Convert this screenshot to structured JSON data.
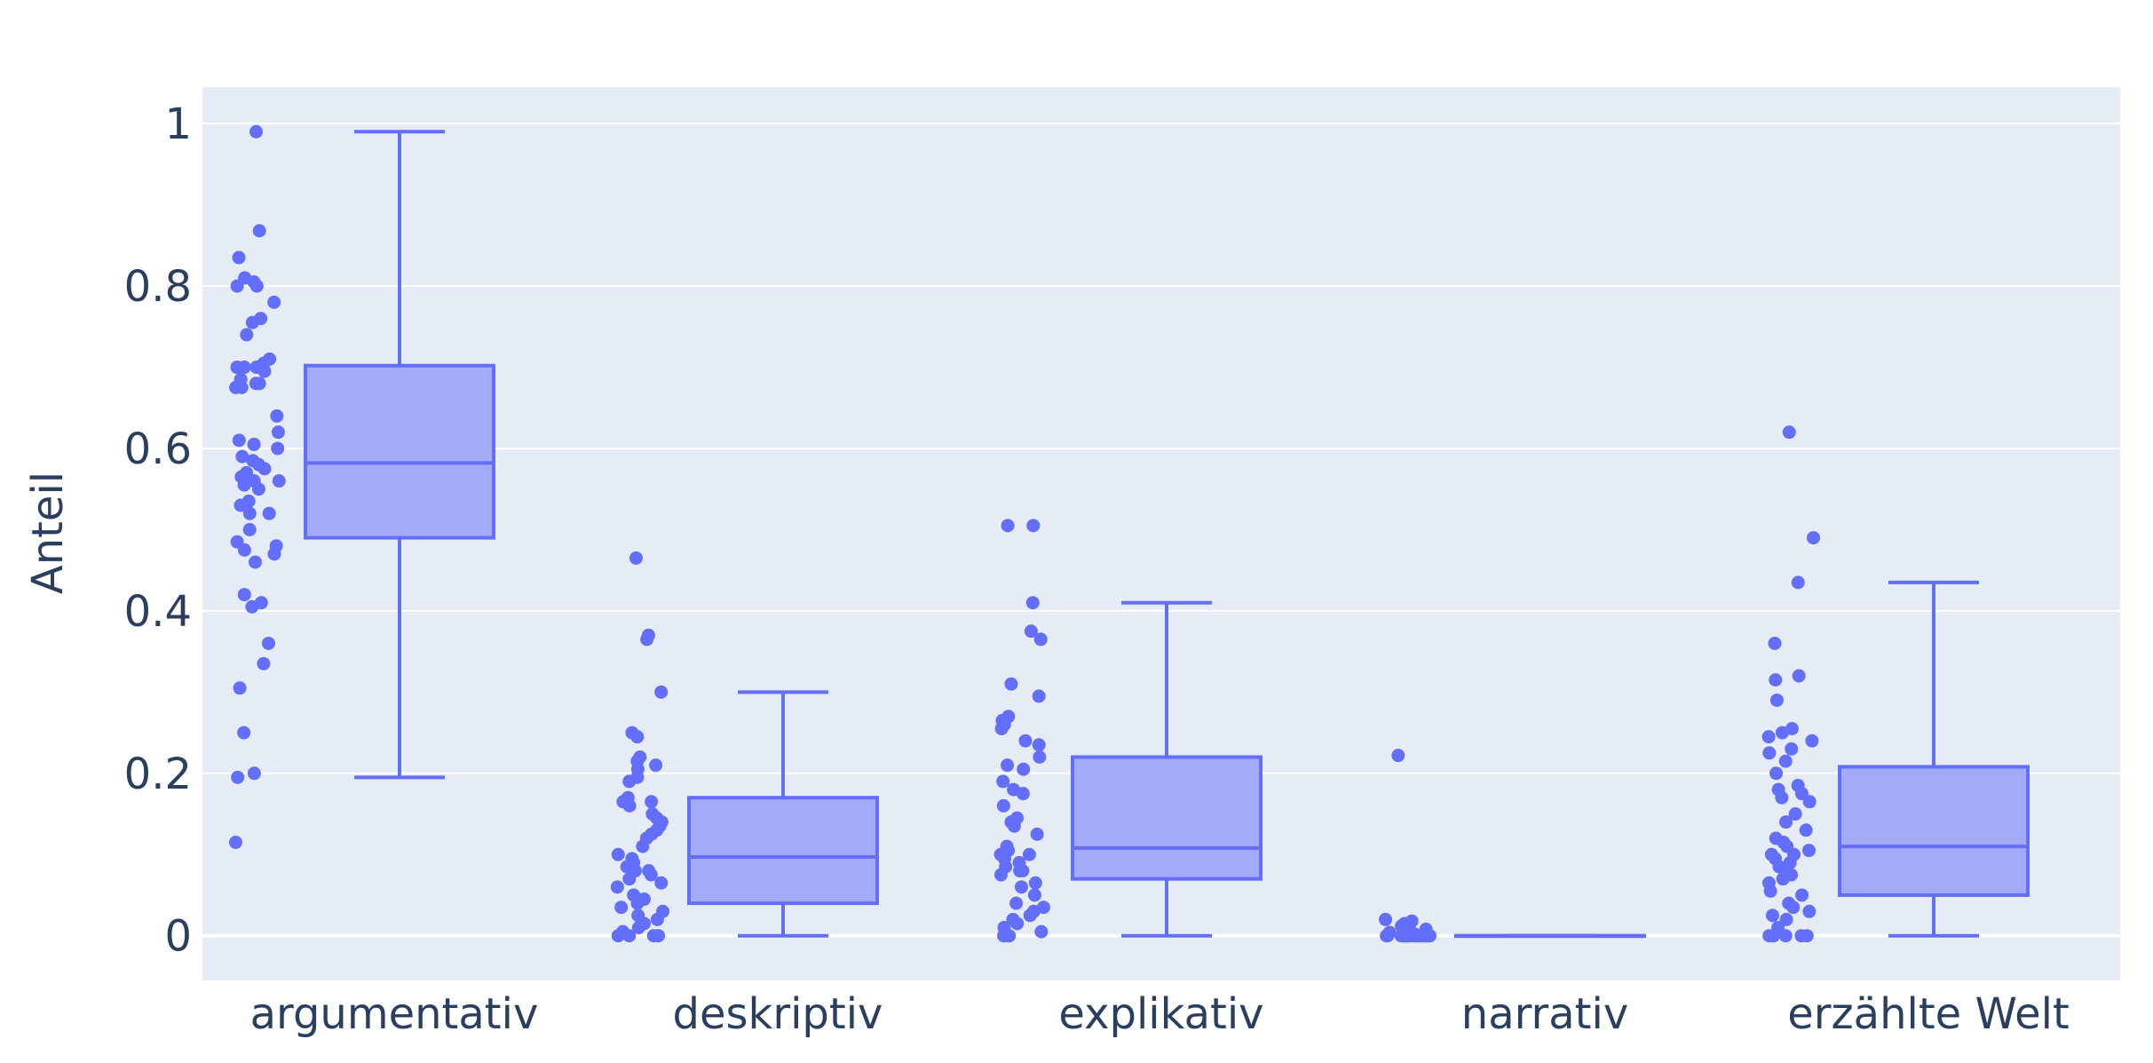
{
  "chart_data": {
    "type": "box",
    "ylabel": "Anteil",
    "xlabel": "",
    "ylim": [
      -0.055,
      1.045
    ],
    "yticks": [
      0,
      0.2,
      0.4,
      0.6,
      0.8,
      1
    ],
    "ytick_labels": [
      "0",
      "0.2",
      "0.4",
      "0.6",
      "0.8",
      "1"
    ],
    "grid": true,
    "legend": "none",
    "colors": {
      "plot_bg": "#e5ecf6",
      "grid": "#ffffff",
      "box_line": "#636efa",
      "box_fill": "#a3aaf7",
      "point": "#636efa",
      "text": "#2a3f5f"
    },
    "categories": [
      "argumentativ",
      "deskriptiv",
      "explikativ",
      "narrativ",
      "erzählte Welt"
    ],
    "boxes": [
      {
        "category": "argumentativ",
        "min": 0.195,
        "q1": 0.49,
        "median": 0.582,
        "q3": 0.702,
        "max": 0.99,
        "points": [
          0.99,
          0.868,
          0.835,
          0.81,
          0.805,
          0.8,
          0.8,
          0.78,
          0.76,
          0.755,
          0.74,
          0.71,
          0.705,
          0.7,
          0.7,
          0.7,
          0.695,
          0.685,
          0.68,
          0.68,
          0.675,
          0.675,
          0.64,
          0.62,
          0.61,
          0.605,
          0.6,
          0.59,
          0.585,
          0.58,
          0.575,
          0.57,
          0.565,
          0.56,
          0.56,
          0.555,
          0.55,
          0.535,
          0.53,
          0.52,
          0.52,
          0.5,
          0.485,
          0.48,
          0.475,
          0.47,
          0.46,
          0.42,
          0.41,
          0.405,
          0.36,
          0.335,
          0.305,
          0.25,
          0.2,
          0.195,
          0.115
        ]
      },
      {
        "category": "deskriptiv",
        "min": 0,
        "q1": 0.04,
        "median": 0.097,
        "q3": 0.17,
        "max": 0.3,
        "points": [
          0.465,
          0.37,
          0.365,
          0.3,
          0.25,
          0.245,
          0.22,
          0.215,
          0.21,
          0.205,
          0.195,
          0.19,
          0.17,
          0.165,
          0.165,
          0.16,
          0.15,
          0.145,
          0.14,
          0.135,
          0.13,
          0.125,
          0.12,
          0.11,
          0.1,
          0.095,
          0.09,
          0.085,
          0.08,
          0.08,
          0.075,
          0.07,
          0.065,
          0.06,
          0.05,
          0.045,
          0.04,
          0.035,
          0.03,
          0.025,
          0.02,
          0.015,
          0.01,
          0.005,
          0,
          0,
          0,
          0
        ]
      },
      {
        "category": "explikativ",
        "min": 0,
        "q1": 0.07,
        "median": 0.108,
        "q3": 0.22,
        "max": 0.41,
        "points": [
          0.505,
          0.505,
          0.41,
          0.375,
          0.365,
          0.31,
          0.295,
          0.27,
          0.265,
          0.26,
          0.255,
          0.24,
          0.235,
          0.22,
          0.21,
          0.205,
          0.19,
          0.18,
          0.175,
          0.16,
          0.145,
          0.14,
          0.135,
          0.125,
          0.11,
          0.105,
          0.1,
          0.1,
          0.095,
          0.09,
          0.085,
          0.08,
          0.08,
          0.075,
          0.065,
          0.06,
          0.05,
          0.04,
          0.035,
          0.03,
          0.025,
          0.02,
          0.015,
          0.01,
          0.005,
          0,
          0,
          0
        ]
      },
      {
        "category": "narrativ",
        "min": 0,
        "q1": 0,
        "median": 0,
        "q3": 0,
        "max": 0,
        "points": [
          0.222,
          0.02,
          0.018,
          0.015,
          0.012,
          0.01,
          0.008,
          0.006,
          0.005,
          0.004,
          0.003,
          0.002,
          0.002,
          0.001,
          0.001,
          0,
          0,
          0,
          0,
          0,
          0,
          0,
          0,
          0,
          0,
          0,
          0,
          0,
          0,
          0,
          0,
          0,
          0,
          0,
          0,
          0,
          0,
          0,
          0,
          0,
          0
        ]
      },
      {
        "category": "erzählte Welt",
        "min": 0,
        "q1": 0.05,
        "median": 0.11,
        "q3": 0.208,
        "max": 0.435,
        "points": [
          0.62,
          0.49,
          0.435,
          0.36,
          0.32,
          0.315,
          0.29,
          0.255,
          0.25,
          0.245,
          0.24,
          0.23,
          0.225,
          0.215,
          0.2,
          0.185,
          0.18,
          0.175,
          0.17,
          0.165,
          0.15,
          0.14,
          0.13,
          0.12,
          0.115,
          0.11,
          0.105,
          0.1,
          0.1,
          0.095,
          0.09,
          0.085,
          0.08,
          0.075,
          0.07,
          0.065,
          0.055,
          0.05,
          0.04,
          0.035,
          0.03,
          0.025,
          0.02,
          0.01,
          0,
          0,
          0,
          0,
          0
        ]
      }
    ]
  }
}
